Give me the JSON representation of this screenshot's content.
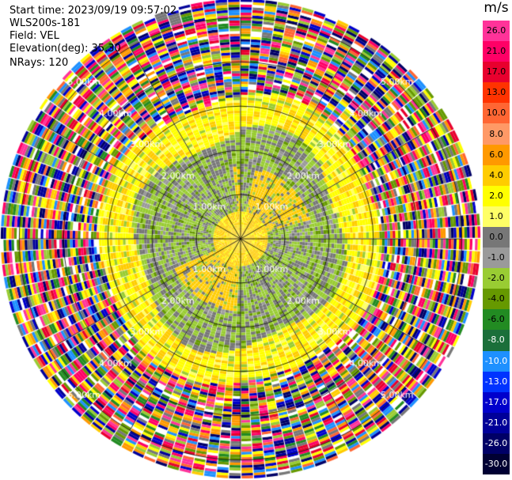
{
  "info": {
    "start_time": "Start time: 2023/09/19 09:57:02",
    "instrument": "WLS200s-181",
    "field": "Field: VEL",
    "elevation": "Elevation(deg): 35.30",
    "nrays": "NRays: 120"
  },
  "plot": {
    "type": "ppi-polar-scan",
    "nrays": 120,
    "range_rings_km": [
      1.0,
      2.0,
      3.0,
      4.0,
      5.0
    ],
    "ring_label": "km",
    "ring_label_angles_deg": [
      45,
      135,
      225,
      315
    ],
    "spokes_deg": [
      0,
      30,
      60,
      90,
      120,
      150
    ],
    "grid": true,
    "pattern": {
      "inner_positive_radius_km": 0.6,
      "negative_band_km": [
        0.6,
        2.4
      ],
      "positive_band_km": [
        1.8,
        3.2
      ],
      "noise_from_km": 3.1
    }
  },
  "colorbar": {
    "unit": "m/s",
    "ticks": [
      "26.0",
      "21.0",
      "17.0",
      "13.0",
      "10.0",
      "8.0",
      "6.0",
      "4.0",
      "2.0",
      "1.0",
      "0.0",
      "-1.0",
      "-2.0",
      "-4.0",
      "-6.0",
      "-8.0",
      "-10.0",
      "-13.0",
      "-17.0",
      "-21.0",
      "-26.0",
      "-30.0"
    ],
    "colors": [
      "#ff3399",
      "#ff0066",
      "#e8002e",
      "#ff3300",
      "#ff6633",
      "#ff9966",
      "#ff9900",
      "#ffcc00",
      "#ffff00",
      "#ffff66",
      "#777777",
      "#9a9a9a",
      "#99cc33",
      "#669900",
      "#228b22",
      "#1b6f3a",
      "#1e90ff",
      "#0033ff",
      "#0000cc",
      "#000099",
      "#000066",
      "#000033"
    ]
  }
}
